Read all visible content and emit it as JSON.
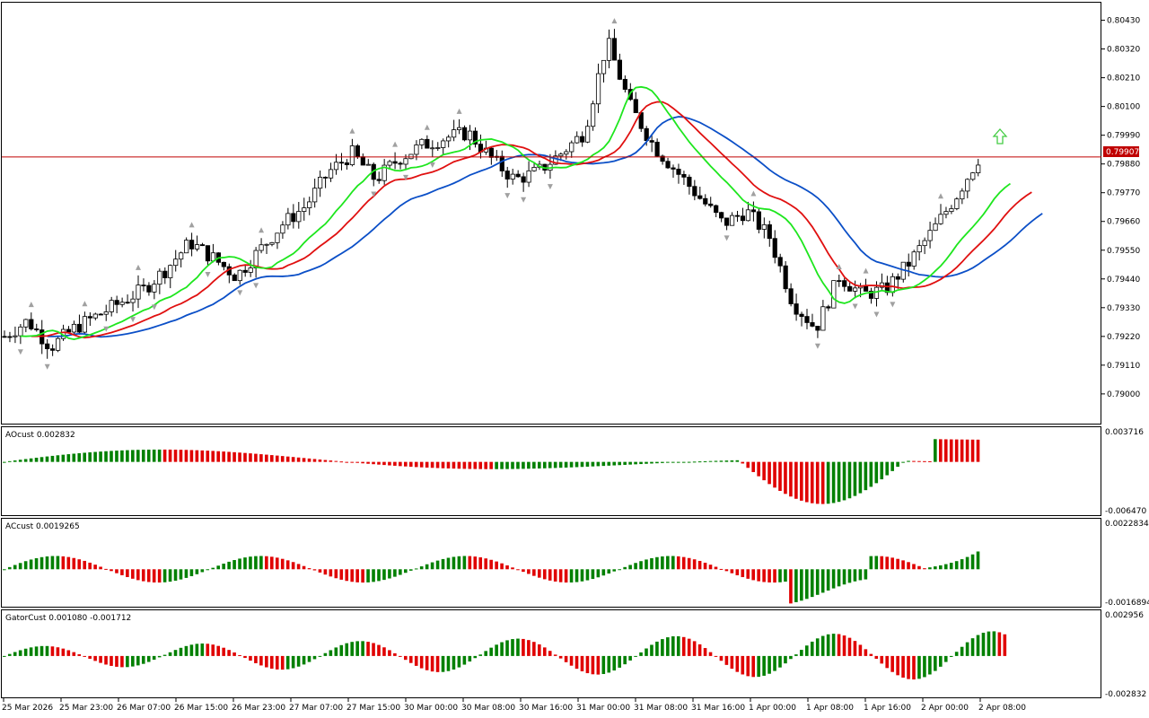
{
  "chart_data": [
    {
      "type": "candlestick",
      "name": "main-price-chart",
      "y_ticks": [
        "0.80430",
        "0.80320",
        "0.80210",
        "0.80100",
        "0.79990",
        "0.79880",
        "0.79770",
        "0.79660",
        "0.79550",
        "0.79440",
        "0.79330",
        "0.79220",
        "0.79110",
        "0.79000"
      ],
      "ylim": [
        0.789,
        0.8048
      ],
      "current_price": "0.79907",
      "current_price_value": 0.79907,
      "x_ticks": [
        "25 Mar 2026",
        "25 Mar 23:00",
        "26 Mar 07:00",
        "26 Mar 15:00",
        "26 Mar 23:00",
        "27 Mar 07:00",
        "27 Mar 15:00",
        "30 Mar 00:00",
        "30 Mar 08:00",
        "30 Mar 16:00",
        "31 Mar 00:00",
        "31 Mar 08:00",
        "31 Mar 16:00",
        "1 Apr 00:00",
        "1 Apr 08:00",
        "1 Apr 16:00",
        "2 Apr 00:00",
        "2 Apr 08:00"
      ],
      "colors": {
        "alligator_jaw": "#0b4fc7",
        "alligator_teeth": "#e01010",
        "alligator_lips": "#1ee61e",
        "price_line": "#c00000",
        "fractal": "#a0a0a0",
        "signal_arrow": "#44cc44"
      },
      "close_estimate": [
        0.7922,
        0.7928,
        0.7918,
        0.7925,
        0.793,
        0.7935,
        0.794,
        0.7948,
        0.7958,
        0.7952,
        0.7945,
        0.7955,
        0.7965,
        0.7972,
        0.7985,
        0.7992,
        0.7982,
        0.799,
        0.7995,
        0.7998,
        0.8,
        0.799,
        0.7982,
        0.7985,
        0.7992,
        0.8,
        0.8035,
        0.801,
        0.7995,
        0.7985,
        0.7975,
        0.7965,
        0.797,
        0.796,
        0.7935,
        0.7925,
        0.7945,
        0.7938,
        0.794,
        0.795,
        0.7962,
        0.7975,
        0.799
      ],
      "notes_visible": [
        "Alligator",
        "Fractals",
        "Bid line"
      ]
    },
    {
      "type": "bar",
      "name": "ao-indicator",
      "label": "AOcust 0.002832",
      "ylim_labels": [
        "0.003716",
        "-0.006470"
      ],
      "ylim": [
        -0.00647,
        0.003716
      ]
    },
    {
      "type": "bar",
      "name": "ac-indicator",
      "label": "ACcust 0.0019265",
      "ylim_labels": [
        "0.0022834",
        "-0.0016894"
      ],
      "ylim": [
        -0.0016894,
        0.0022834
      ]
    },
    {
      "type": "bar",
      "name": "gator-indicator",
      "label": "GatorCust 0.001080 -0.001712",
      "ylim_labels": [
        "0.002956",
        "-0.002832"
      ],
      "ylim": [
        -0.002832,
        0.002956
      ]
    }
  ]
}
